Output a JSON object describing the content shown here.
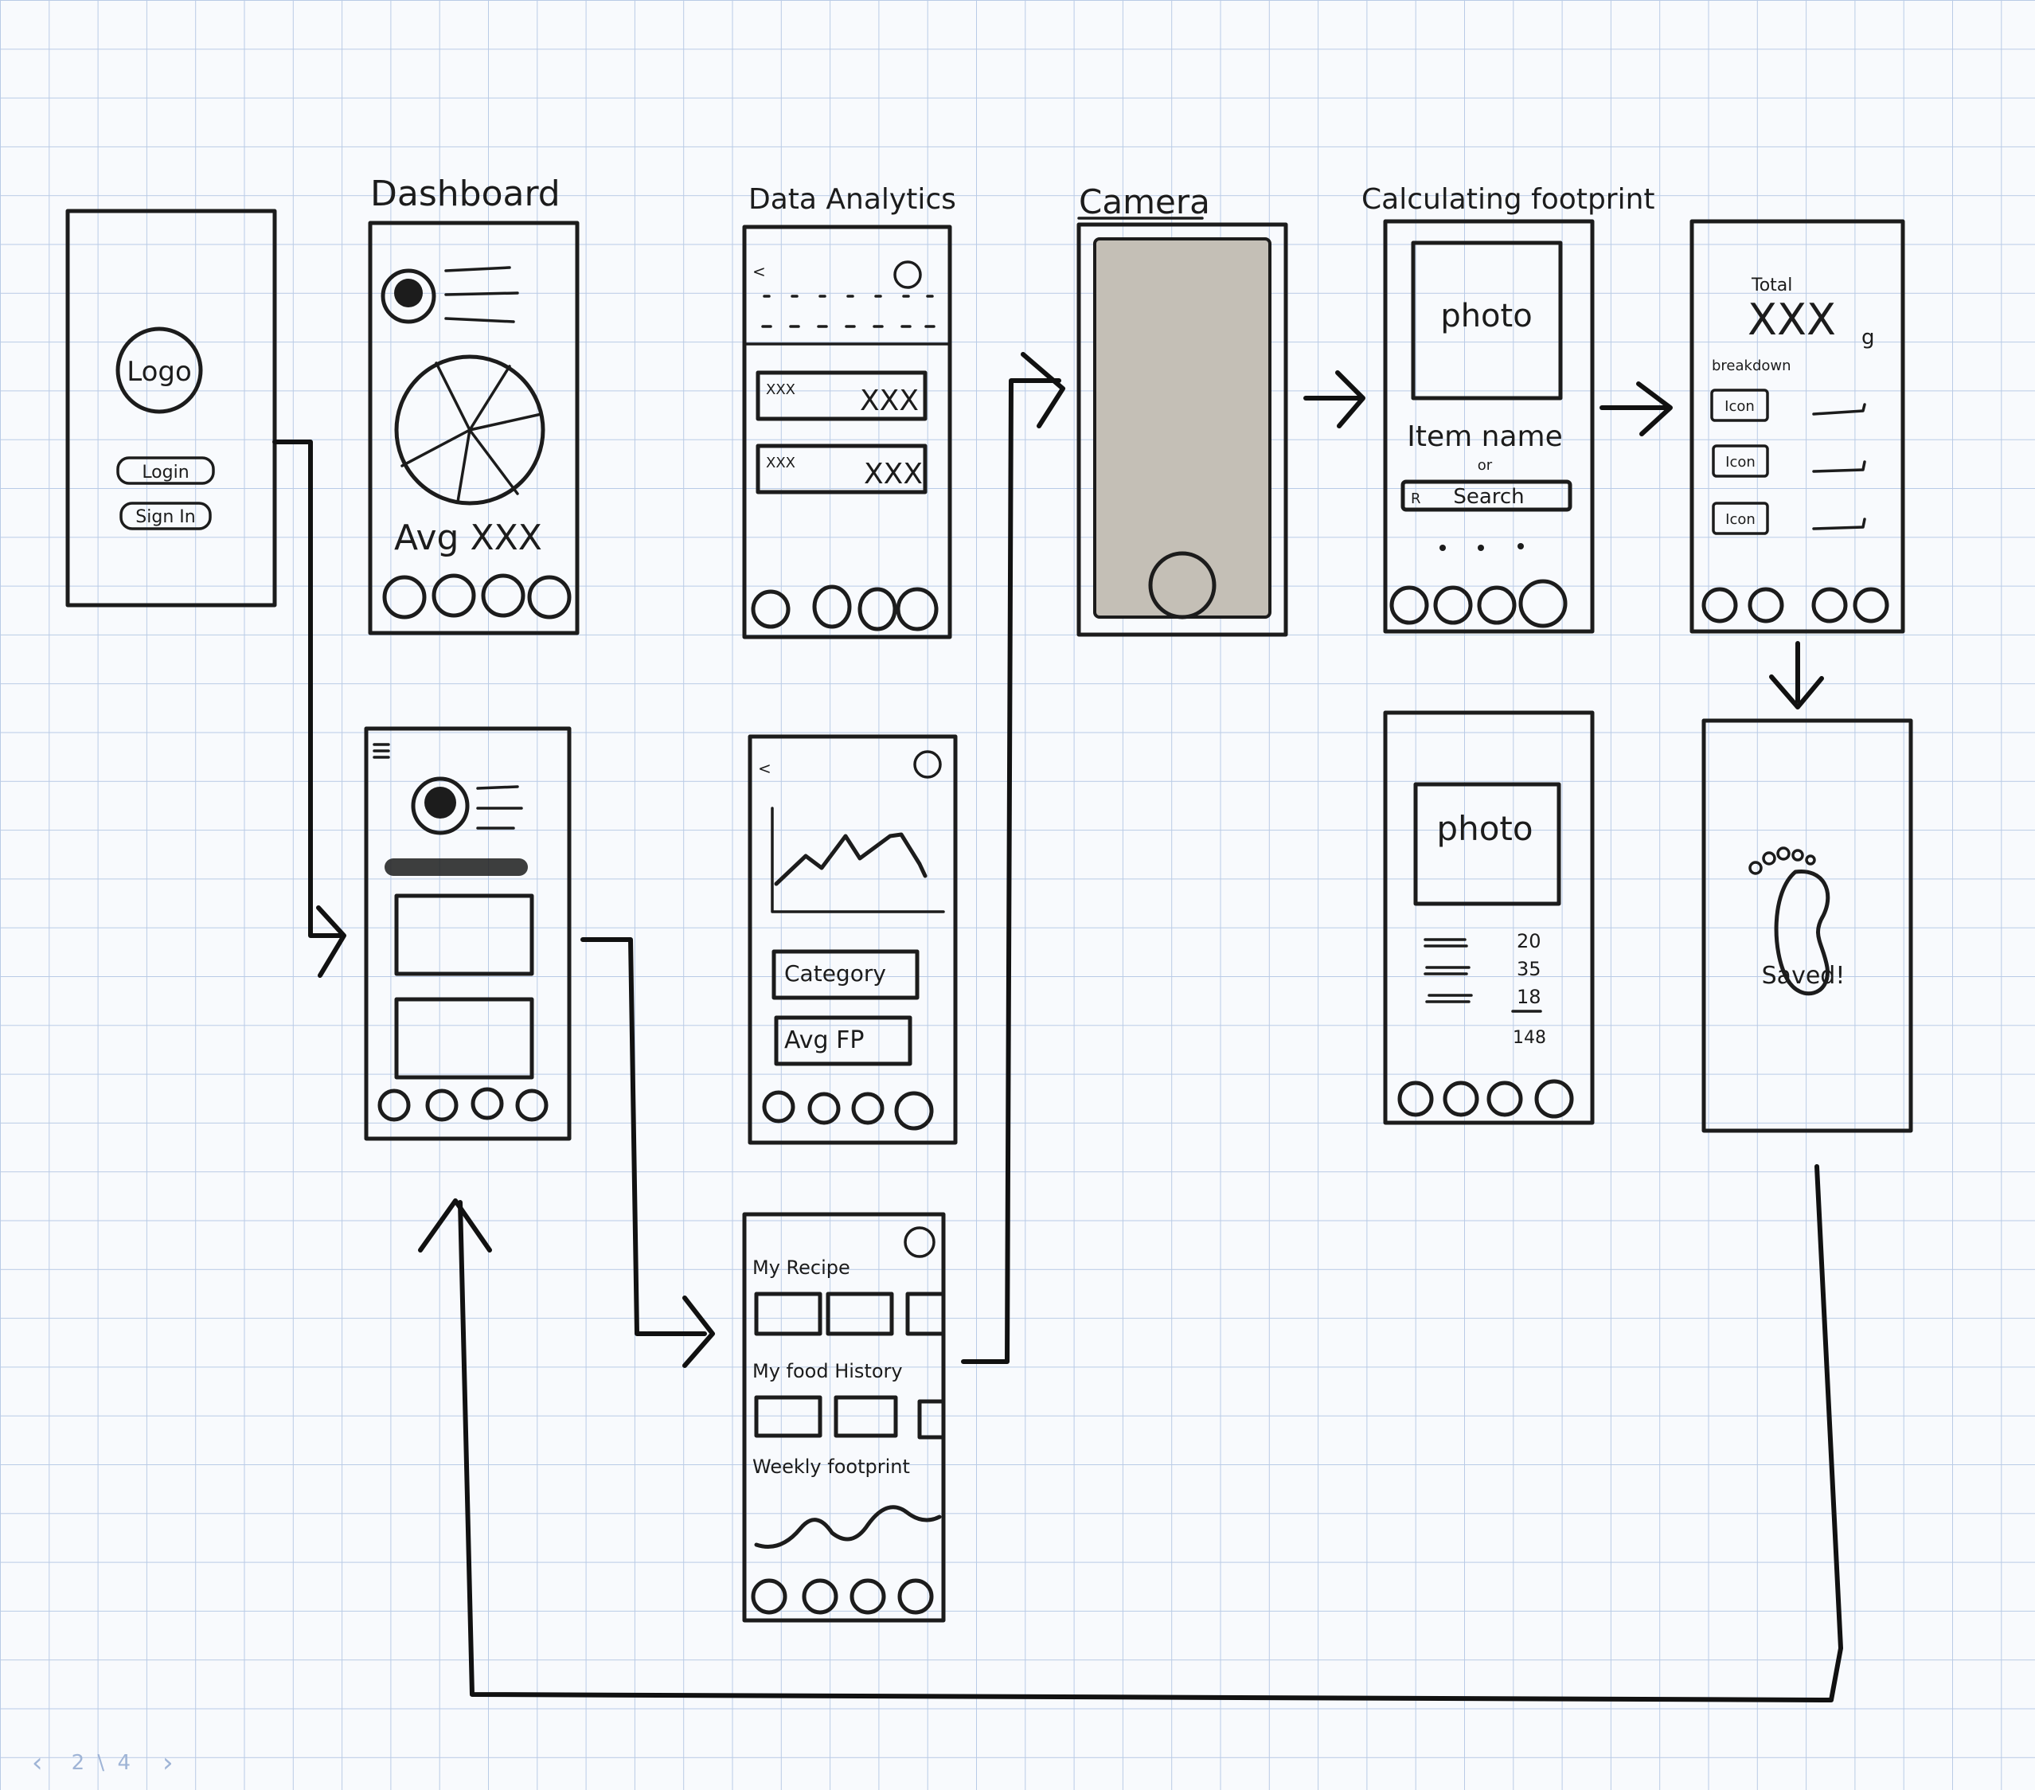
{
  "colors": {
    "grid": "#b9cbe6",
    "ink": "#1c1c1c",
    "camera_fill": "#c4bfb6",
    "pager": "#9fb4d6"
  },
  "screens": {
    "login": {
      "logo": "Logo",
      "login_btn": "Login",
      "signin_btn": "Sign In"
    },
    "dashboard": {
      "title": "Dashboard",
      "stat": "Avg XXX"
    },
    "menu": {},
    "data_analytics": {
      "title": "Data Analytics",
      "row1_left": "XXX",
      "row1_right": "XXX",
      "row2_left": "XXX",
      "row2_right": "XXX"
    },
    "analytics_chart": {
      "btn1": "Category",
      "btn2": "Avg FP"
    },
    "home": {
      "section1": "My Recipe",
      "section2": "My food History",
      "section3": "Weekly footprint"
    },
    "camera": {
      "title": "Camera"
    },
    "calculating": {
      "title": "Calculating footprint",
      "photo": "photo",
      "item_name": "Item name",
      "or": "or",
      "search": "Search"
    },
    "result": {
      "photo": "photo",
      "values": [
        "20",
        "35",
        "18",
        "148"
      ]
    },
    "total": {
      "label": "Total",
      "value": "XXX",
      "unit": "g",
      "breakdown": "breakdown",
      "chip": "Icon"
    },
    "saved": {
      "message": "Saved!"
    }
  },
  "pager": {
    "prev": "‹",
    "label": "2 \\ 4",
    "next": "›"
  }
}
